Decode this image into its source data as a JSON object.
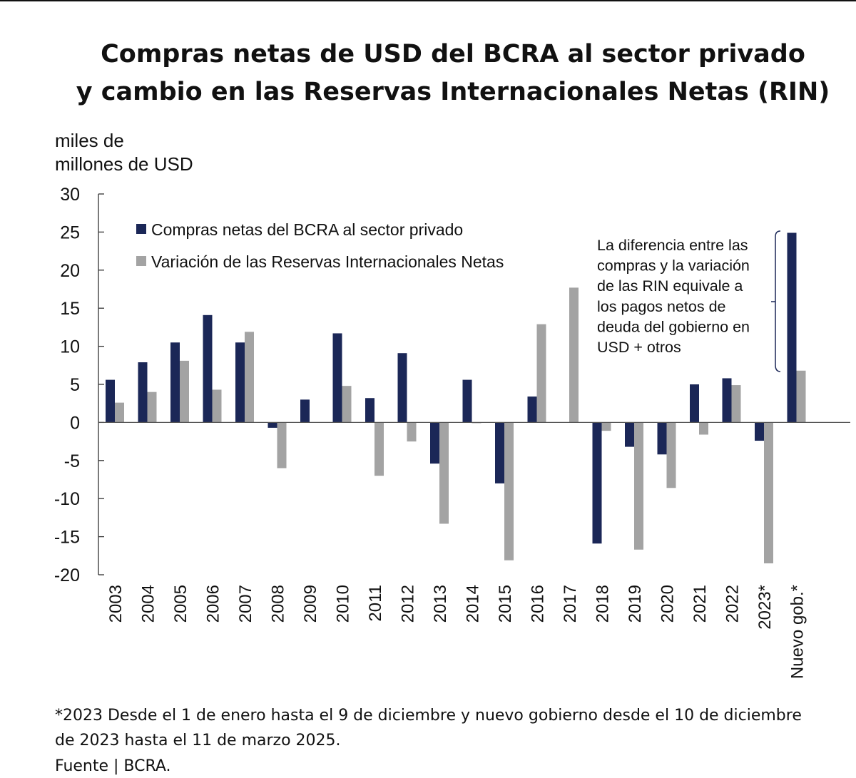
{
  "title_line1": "Compras netas de USD del BCRA al sector privado",
  "title_line2": "y cambio en las Reservas Internacionales Netas (RIN)",
  "unit_line1": "miles de",
  "unit_line2": "millones de USD",
  "colors": {
    "navy": "#1b2757",
    "gray": "#a3a3a3"
  },
  "chart_data": {
    "type": "bar",
    "ylim": [
      -20,
      30
    ],
    "yticks": [
      30,
      25,
      20,
      15,
      10,
      5,
      0,
      -5,
      -10,
      -15,
      -20
    ],
    "categories": [
      "2003",
      "2004",
      "2005",
      "2006",
      "2007",
      "2008",
      "2009",
      "2010",
      "2011",
      "2012",
      "2013",
      "2014",
      "2015",
      "2016",
      "2017",
      "2018",
      "2019",
      "2020",
      "2021",
      "2022",
      "2023*",
      "Nuevo gob.*"
    ],
    "series": [
      {
        "name": "Compras netas del BCRA al sector privado",
        "color": "#1b2757",
        "values": [
          5.6,
          7.9,
          10.5,
          14.1,
          10.5,
          -0.7,
          3.0,
          11.7,
          3.2,
          9.1,
          -5.4,
          5.6,
          -8.0,
          3.4,
          0.0,
          -15.9,
          -3.2,
          -4.2,
          5.0,
          5.8,
          -2.4,
          24.9
        ]
      },
      {
        "name": "Variación de las Reservas Internacionales Netas",
        "color": "#a3a3a3",
        "values": [
          2.6,
          4.0,
          8.1,
          4.3,
          11.9,
          -6.0,
          0.0,
          4.8,
          -7.0,
          -2.5,
          -13.3,
          -0.1,
          -18.1,
          12.9,
          17.7,
          -1.1,
          -16.7,
          -8.6,
          -1.6,
          4.9,
          -18.5,
          6.8
        ]
      }
    ],
    "annotation": [
      "La diferencia entre las",
      "compras y la variación",
      "de las RIN  equivale a",
      "los pagos netos de",
      "deuda del gobierno en",
      "USD + otros"
    ]
  },
  "footnote_line1": "*2023 Desde el 1 de enero hasta el 9 de diciembre y nuevo gobierno desde el 10 de diciembre",
  "footnote_line2": "de 2023 hasta el 11 de marzo 2025.",
  "source": "Fuente | BCRA."
}
